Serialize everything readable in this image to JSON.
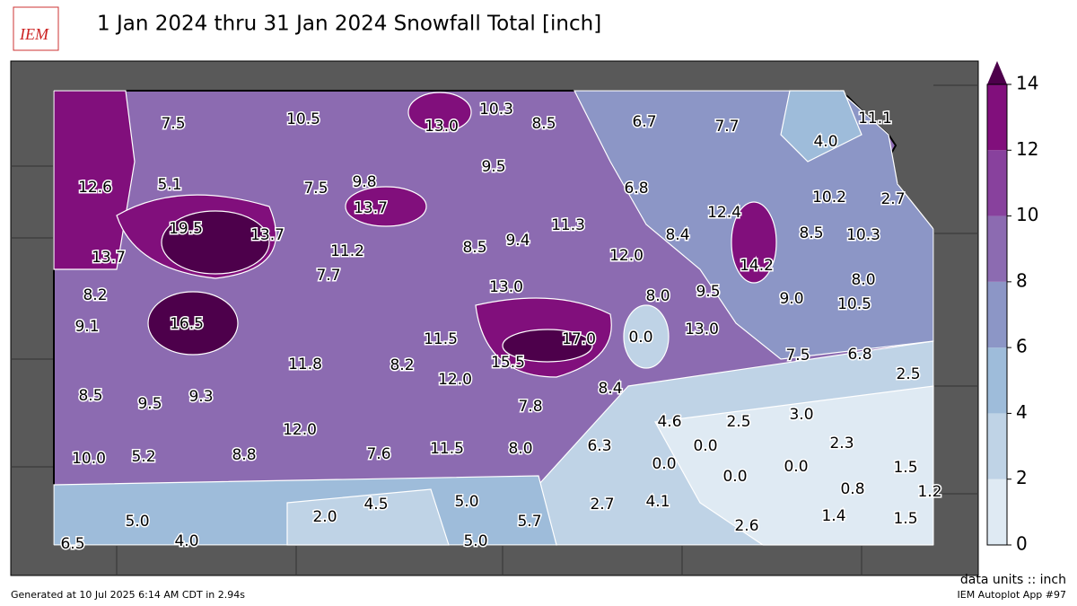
{
  "header": {
    "logo": "IEM",
    "title": "1 Jan 2024 thru 31 Jan 2024 Snowfall Total [inch]"
  },
  "map": {
    "units_note": "data units :: inch",
    "values": [
      7.5,
      10.5,
      13.0,
      10.3,
      8.5,
      6.7,
      7.7,
      11.1,
      4.0,
      12.6,
      5.1,
      7.5,
      9.8,
      13.7,
      9.5,
      6.8,
      10.2,
      2.7,
      19.5,
      13.7,
      12.4,
      11.2,
      8.5,
      9.4,
      11.3,
      8.4,
      8.5,
      10.3,
      13.7,
      12.0,
      14.2,
      7.7,
      8.0,
      8.2,
      13.0,
      8.0,
      9.5,
      9.0,
      10.5,
      9.1,
      16.5,
      13.0,
      11.5,
      17.0,
      0.0,
      7.5,
      6.8,
      11.8,
      8.2,
      15.5,
      12.0,
      8.5,
      9.5,
      9.3,
      8.4,
      2.5,
      7.8,
      4.6,
      2.5,
      3.0,
      12.0,
      0.0,
      2.3,
      10.0,
      5.2,
      8.8,
      7.6,
      11.5,
      8.0,
      6.3,
      0.0,
      0.0,
      0.0,
      1.5,
      0.8,
      1.2,
      2.0,
      4.5,
      5.0,
      2.7,
      4.1,
      5.7,
      1.4,
      1.5,
      5.0,
      4.0,
      5.0,
      2.6,
      6.5
    ],
    "value_labels": [
      "7.5",
      "10.5",
      "13.0",
      "10.3",
      "8.5",
      "6.7",
      "7.7",
      "11.1",
      "4.0",
      "12.6",
      "5.1",
      "7.5",
      "9.8",
      "13.7",
      "9.5",
      "6.8",
      "10.2",
      "2.7",
      "19.5",
      "13.7",
      "12.4",
      "11.2",
      "8.5",
      "9.4",
      "11.3",
      "8.4",
      "8.5",
      "10.3",
      "13.7",
      "12.0",
      "14.2",
      "7.7",
      "8.0",
      "8.2",
      "13.0",
      "8.0",
      "9.5",
      "9.0",
      "10.5",
      "9.1",
      "16.5",
      "13.0",
      "11.5",
      "17.0",
      "0.0",
      "7.5",
      "6.8",
      "11.8",
      "8.2",
      "15.5",
      "12.0",
      "8.5",
      "9.5",
      "9.3",
      "8.4",
      "2.5",
      "7.8",
      "4.6",
      "2.5",
      "3.0",
      "12.0",
      "0.0",
      "2.3",
      "10.0",
      "5.2",
      "8.8",
      "7.6",
      "11.5",
      "8.0",
      "6.3",
      "0.0",
      "0.0",
      "0.0",
      "1.5",
      "0.8",
      "1.2",
      "2.0",
      "4.5",
      "5.0",
      "2.7",
      "4.1",
      "5.7",
      "1.4",
      "1.5",
      "5.0",
      "4.0",
      "5.0",
      "2.6",
      "6.5"
    ]
  },
  "colorbar": {
    "ticks": [
      0,
      2,
      4,
      6,
      8,
      10,
      12,
      14
    ],
    "colors": [
      "#dfeaf3",
      "#bfd3e6",
      "#9ebcda",
      "#8c96c6",
      "#8c6bb1",
      "#88419d",
      "#810f7c"
    ],
    "over_color": "#4d004b"
  },
  "footer": {
    "generated": "Generated at 10 Jul 2025 6:14 AM CDT in 2.94s",
    "app": "IEM Autoplot App #97"
  }
}
